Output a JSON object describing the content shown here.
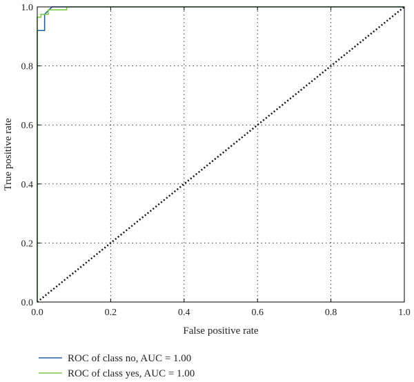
{
  "chart_data": {
    "type": "line",
    "xlabel": "False positive rate",
    "ylabel": "True positive rate",
    "xlim": [
      0.0,
      1.0
    ],
    "ylim": [
      0.0,
      1.0
    ],
    "x_ticks": [
      "0.0",
      "0.2",
      "0.4",
      "0.6",
      "0.8",
      "1.0"
    ],
    "y_ticks": [
      "0.0",
      "0.2",
      "0.4",
      "0.6",
      "0.8",
      "1.0"
    ],
    "x_tick_values": [
      0,
      0.2,
      0.4,
      0.6,
      0.8,
      1.0
    ],
    "y_tick_values": [
      0,
      0.2,
      0.4,
      0.6,
      0.8,
      1.0
    ],
    "grid": true,
    "grid_style": "dotted",
    "legend_position": "bottom-left, below plot",
    "series": [
      {
        "name": "ROC of class no, AUC = 1.00",
        "color": "#1f5fa0",
        "x": [
          0.0,
          0.0,
          0.0,
          0.0,
          0.02,
          0.02,
          0.04,
          1.0
        ],
        "y": [
          0.0,
          0.92,
          0.92,
          0.92,
          0.92,
          0.975,
          1.0,
          1.0
        ]
      },
      {
        "name": "ROC of class yes, AUC = 1.00",
        "color": "#7ac943",
        "x": [
          0.0,
          0.0,
          0.01,
          0.01,
          0.02,
          0.03,
          0.03,
          0.08,
          0.08,
          1.0
        ],
        "y": [
          0.0,
          0.965,
          0.965,
          0.975,
          0.975,
          0.975,
          0.99,
          0.99,
          1.0,
          1.0
        ]
      }
    ],
    "reference_line": {
      "x": [
        0,
        1
      ],
      "y": [
        0,
        1
      ],
      "color": "#111111",
      "style": "dotted"
    }
  }
}
